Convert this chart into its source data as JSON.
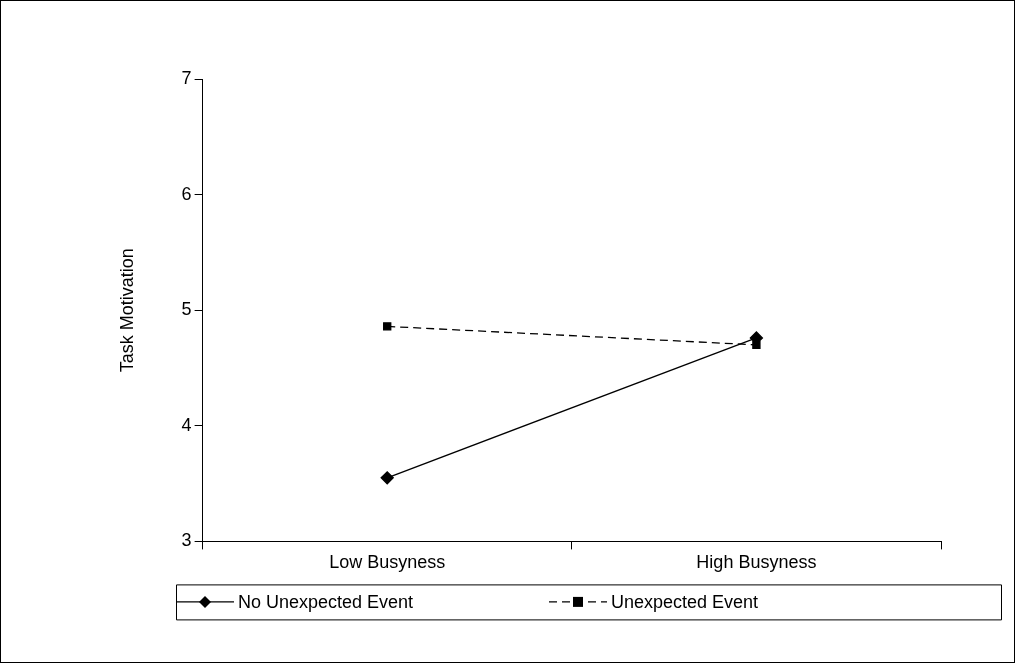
{
  "chart_data": {
    "type": "line",
    "ylabel": "Task Motivation",
    "categories": [
      "Low Busyness",
      "High Busyness"
    ],
    "series": [
      {
        "name": "No Unexpected Event",
        "color": "#000000",
        "values": [
          3.55,
          4.76
        ],
        "marker": "diamond",
        "line_style": "solid"
      },
      {
        "name": "Unexpected Event",
        "color": "#000000",
        "values": [
          4.86,
          4.7
        ],
        "marker": "square",
        "line_style": "dashed"
      }
    ],
    "ylim": [
      3,
      7
    ],
    "yticks": [
      3,
      4,
      5,
      6,
      7
    ],
    "grid": false,
    "legend": "bottom"
  }
}
